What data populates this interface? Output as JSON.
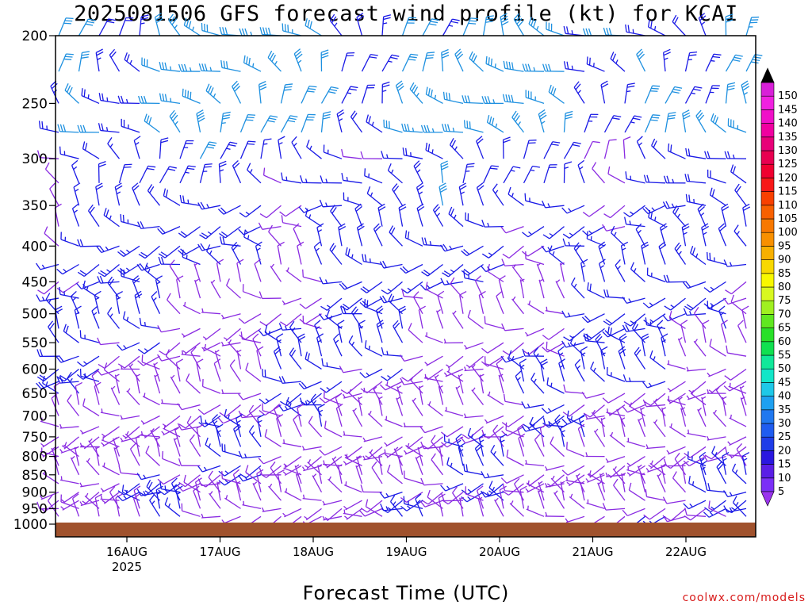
{
  "title": "2025081506 GFS forecast wind profile (kt) for KCAI",
  "x_axis_title": "Forecast Time (UTC)",
  "credit": "coolwx.com/models",
  "chart_data": {
    "type": "wind-barb time-height profile",
    "title": "2025081506 GFS forecast wind profile (kt) for KCAI",
    "xlabel": "Forecast Time (UTC)",
    "ylabel": "",
    "y_axis": {
      "scale": "log",
      "range": [
        200,
        1000
      ],
      "ticks": [
        200,
        250,
        300,
        350,
        400,
        450,
        500,
        550,
        600,
        650,
        700,
        750,
        800,
        850,
        900,
        950,
        1000
      ]
    },
    "x_axis": {
      "ticks": [
        {
          "label": "16AUG",
          "sublabel": "2025"
        },
        {
          "label": "17AUG",
          "sublabel": ""
        },
        {
          "label": "18AUG",
          "sublabel": ""
        },
        {
          "label": "19AUG",
          "sublabel": ""
        },
        {
          "label": "20AUG",
          "sublabel": ""
        },
        {
          "label": "21AUG",
          "sublabel": ""
        },
        {
          "label": "22AUG",
          "sublabel": ""
        }
      ]
    },
    "surface_color": "#a0522d",
    "colorbar": {
      "units": "kt",
      "levels": [
        5,
        10,
        15,
        20,
        25,
        30,
        35,
        40,
        45,
        50,
        55,
        60,
        65,
        70,
        75,
        80,
        85,
        90,
        95,
        100,
        105,
        110,
        115,
        120,
        125,
        130,
        135,
        140,
        145,
        150
      ],
      "colors": [
        "#7b2ff7",
        "#5a1ee6",
        "#2a17e0",
        "#1e3ce8",
        "#1f5cf0",
        "#2078f0",
        "#1ea0f0",
        "#1ec8e8",
        "#12e6c8",
        "#10e89a",
        "#10e050",
        "#28e028",
        "#60e820",
        "#a0f020",
        "#d8f820",
        "#f8f800",
        "#f8d800",
        "#f8b000",
        "#f89000",
        "#f87800",
        "#f86000",
        "#f84000",
        "#f81818",
        "#f00030",
        "#e80050",
        "#e80078",
        "#f000a0",
        "#f010c8",
        "#f020e0",
        "#d820d8"
      ],
      "top_arrow_color": "#000000",
      "bottom_arrow_color": "#9a33ee"
    },
    "barb_colors": {
      "5-10kt": "#8a2be2",
      "15-25kt": "#1a1ae6",
      "30-40kt": "#1e90e0"
    }
  }
}
